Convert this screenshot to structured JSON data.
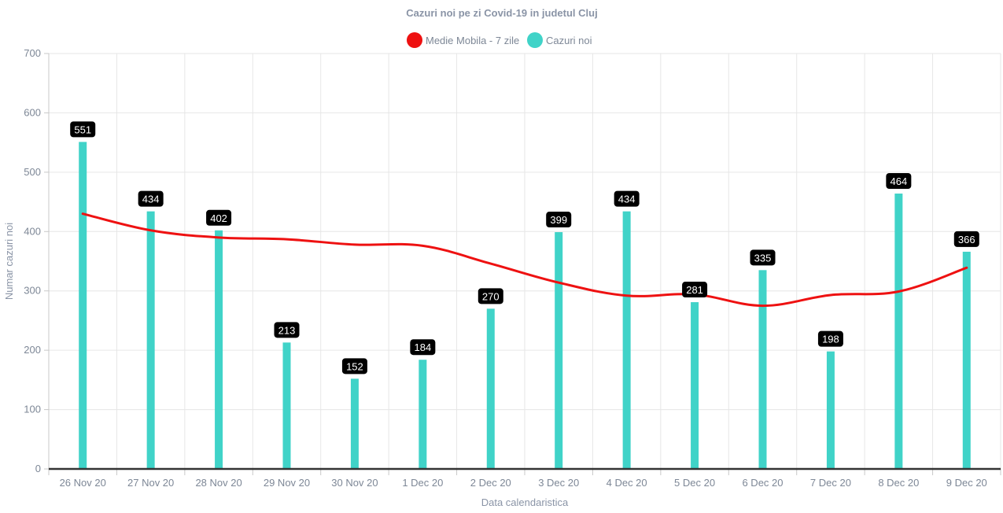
{
  "chart_data": {
    "type": "bar",
    "title": "Cazuri noi pe zi Covid-19 in judetul Cluj",
    "xlabel": "Data calendaristica",
    "ylabel": "Numar cazuri noi",
    "ylim": [
      0,
      700
    ],
    "yticks": [
      0,
      100,
      200,
      300,
      400,
      500,
      600,
      700
    ],
    "grid": true,
    "legend_position": "top-center",
    "categories": [
      "26 Nov 20",
      "27 Nov 20",
      "28 Nov 20",
      "29 Nov 20",
      "30 Nov 20",
      "1 Dec 20",
      "2 Dec 20",
      "3 Dec 20",
      "4 Dec 20",
      "5 Dec 20",
      "6 Dec 20",
      "7 Dec 20",
      "8 Dec 20",
      "9 Dec 20"
    ],
    "series": [
      {
        "name": "Medie Mobila - 7 zile",
        "type": "line",
        "color": "#ee1111",
        "values": [
          430,
          402,
          390,
          387,
          378,
          376,
          346,
          314,
          292,
          294,
          275,
          293,
          299,
          339
        ]
      },
      {
        "name": "Cazuri noi",
        "type": "bar",
        "color": "#40d3c8",
        "values": [
          551,
          434,
          402,
          213,
          152,
          184,
          270,
          399,
          434,
          281,
          335,
          198,
          464,
          366
        ],
        "data_labels": true
      }
    ]
  }
}
